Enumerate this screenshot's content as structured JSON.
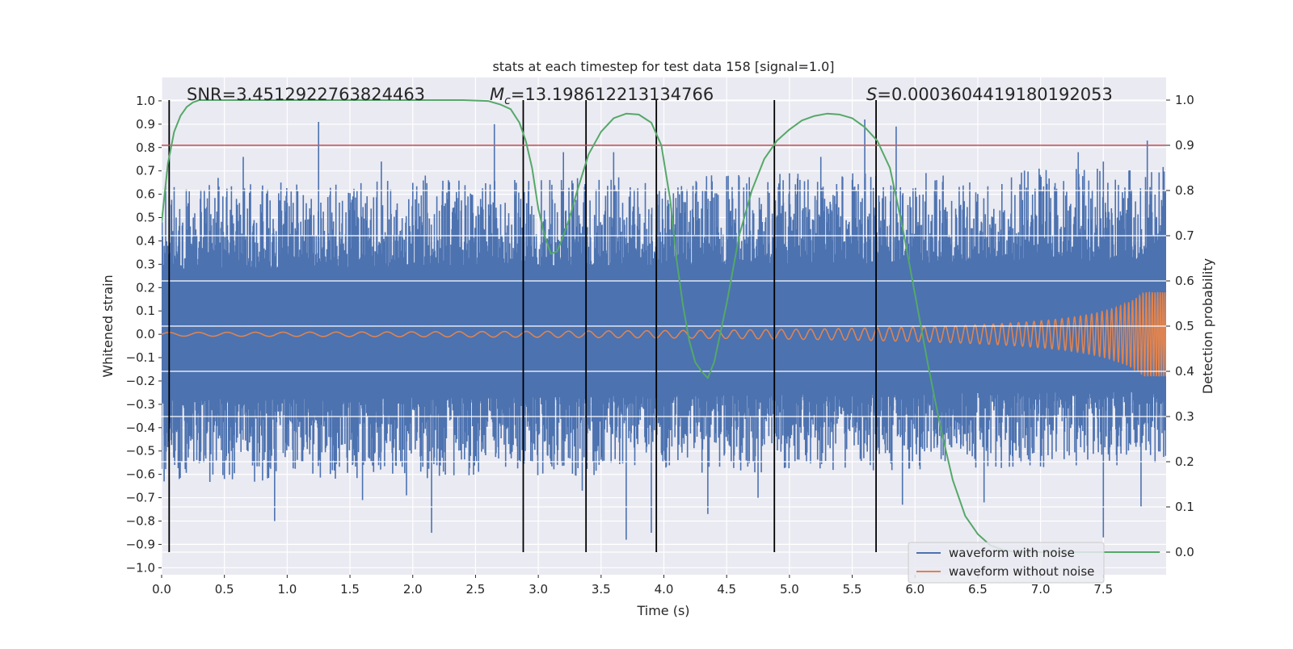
{
  "chart_data": {
    "type": "line",
    "title": "stats at each timestep for test data 158 [signal=1.0]",
    "xlabel": "Time (s)",
    "ylabel": "Whitened strain",
    "y2label": "Detection probability",
    "xlim": [
      0.0,
      8.0
    ],
    "ylim": [
      -1.03,
      1.1
    ],
    "y2lim": [
      -0.05,
      1.05
    ],
    "xticks": [
      "0.0",
      "0.5",
      "1.0",
      "1.5",
      "2.0",
      "2.5",
      "3.0",
      "3.5",
      "4.0",
      "4.5",
      "5.0",
      "5.5",
      "6.0",
      "6.5",
      "7.0",
      "7.5"
    ],
    "xtick_values": [
      0.0,
      0.5,
      1.0,
      1.5,
      2.0,
      2.5,
      3.0,
      3.5,
      4.0,
      4.5,
      5.0,
      5.5,
      6.0,
      6.5,
      7.0,
      7.5
    ],
    "yticks": [
      "−1.0",
      "−0.9",
      "−0.8",
      "−0.7",
      "−0.6",
      "−0.5",
      "−0.4",
      "−0.3",
      "−0.2",
      "−0.1",
      "0.0",
      "0.1",
      "0.2",
      "0.3",
      "0.4",
      "0.5",
      "0.6",
      "0.7",
      "0.8",
      "0.9",
      "1.0"
    ],
    "ytick_values": [
      -1.0,
      -0.9,
      -0.8,
      -0.7,
      -0.6,
      -0.5,
      -0.4,
      -0.3,
      -0.2,
      -0.1,
      0.0,
      0.1,
      0.2,
      0.3,
      0.4,
      0.5,
      0.6,
      0.7,
      0.8,
      0.9,
      1.0
    ],
    "y2ticks": [
      "0.0",
      "0.1",
      "0.2",
      "0.3",
      "0.4",
      "0.5",
      "0.6",
      "0.7",
      "0.8",
      "0.9",
      "1.0"
    ],
    "y2tick_values": [
      0.0,
      0.1,
      0.2,
      0.3,
      0.4,
      0.5,
      0.6,
      0.7,
      0.8,
      0.9,
      1.0
    ],
    "annotations": {
      "snr": "SNR=3.4512922763824463",
      "mc_symbol": "M",
      "mc_sub": "c",
      "mc_value": "=13.198612213134766",
      "s_symbol": "S",
      "s_value": "=0.0003604419180192053"
    },
    "threshold": {
      "axis": "y2",
      "value": 0.9,
      "color": "#c44e52"
    },
    "vlines": [
      0.06,
      2.88,
      3.38,
      3.94,
      4.88,
      5.69
    ],
    "vline_y2_range": [
      0.0,
      1.0
    ],
    "legend": {
      "position": "lower right",
      "entries": [
        {
          "label": "waveform with noise",
          "color": "#4c72b0"
        },
        {
          "label": "waveform without noise",
          "color": "#dd8452"
        }
      ]
    },
    "noisy_series": {
      "name": "waveform with noise",
      "color": "#4c72b0",
      "band_upper": [
        0.4,
        0.45
      ],
      "band_lower": [
        -0.4,
        -0.35
      ],
      "peaks_high": [
        [
          0.06,
          0.9
        ],
        [
          0.45,
          0.67
        ],
        [
          0.65,
          0.76
        ],
        [
          0.95,
          0.65
        ],
        [
          1.25,
          0.91
        ],
        [
          1.75,
          0.74
        ],
        [
          2.1,
          0.68
        ],
        [
          2.65,
          0.9
        ],
        [
          3.2,
          0.78
        ],
        [
          3.6,
          0.78
        ],
        [
          3.95,
          0.6
        ],
        [
          4.95,
          0.66
        ],
        [
          5.25,
          0.76
        ],
        [
          5.6,
          0.92
        ],
        [
          5.85,
          0.89
        ],
        [
          7.3,
          0.78
        ],
        [
          7.5,
          0.74
        ],
        [
          7.85,
          0.83
        ]
      ],
      "peaks_low": [
        [
          0.02,
          -0.63
        ],
        [
          0.5,
          -0.62
        ],
        [
          0.9,
          -0.8
        ],
        [
          1.6,
          -0.71
        ],
        [
          1.95,
          -0.69
        ],
        [
          2.15,
          -0.85
        ],
        [
          3.35,
          -0.67
        ],
        [
          3.7,
          -0.88
        ],
        [
          3.9,
          -0.85
        ],
        [
          4.35,
          -0.77
        ],
        [
          4.75,
          -0.7
        ],
        [
          5.9,
          -0.73
        ],
        [
          6.55,
          -0.72
        ],
        [
          7.5,
          -0.87
        ],
        [
          7.8,
          -0.74
        ]
      ]
    },
    "clean_series": {
      "name": "waveform without noise",
      "color": "#dd8452",
      "amplitude_start": 0.008,
      "amplitude_end": 0.18,
      "t_coalescence": 8.25
    },
    "probability_series": {
      "name": "detection probability",
      "color": "#55a868",
      "x": [
        0.0,
        0.05,
        0.1,
        0.15,
        0.2,
        0.25,
        0.3,
        0.4,
        0.5,
        1.0,
        1.5,
        2.0,
        2.4,
        2.6,
        2.7,
        2.78,
        2.85,
        2.9,
        2.95,
        3.0,
        3.05,
        3.1,
        3.15,
        3.2,
        3.25,
        3.3,
        3.4,
        3.5,
        3.6,
        3.7,
        3.8,
        3.9,
        3.98,
        4.05,
        4.1,
        4.15,
        4.2,
        4.25,
        4.3,
        4.35,
        4.4,
        4.5,
        4.6,
        4.7,
        4.8,
        4.9,
        5.0,
        5.1,
        5.2,
        5.3,
        5.4,
        5.5,
        5.6,
        5.7,
        5.8,
        5.9,
        6.0,
        6.1,
        6.2,
        6.3,
        6.4,
        6.5,
        6.6,
        6.7,
        6.8,
        7.0,
        7.5,
        7.95
      ],
      "y": [
        0.73,
        0.86,
        0.93,
        0.965,
        0.985,
        0.995,
        1.0,
        1.0,
        1.0,
        1.0,
        1.0,
        1.0,
        1.0,
        0.998,
        0.99,
        0.98,
        0.95,
        0.91,
        0.85,
        0.76,
        0.7,
        0.66,
        0.665,
        0.7,
        0.74,
        0.79,
        0.88,
        0.93,
        0.96,
        0.97,
        0.968,
        0.95,
        0.9,
        0.78,
        0.65,
        0.55,
        0.47,
        0.42,
        0.4,
        0.385,
        0.42,
        0.55,
        0.7,
        0.8,
        0.87,
        0.91,
        0.935,
        0.955,
        0.965,
        0.97,
        0.968,
        0.96,
        0.94,
        0.91,
        0.85,
        0.72,
        0.57,
        0.42,
        0.28,
        0.16,
        0.08,
        0.04,
        0.015,
        0.005,
        0.0,
        0.0,
        0.0,
        0.0
      ]
    }
  }
}
